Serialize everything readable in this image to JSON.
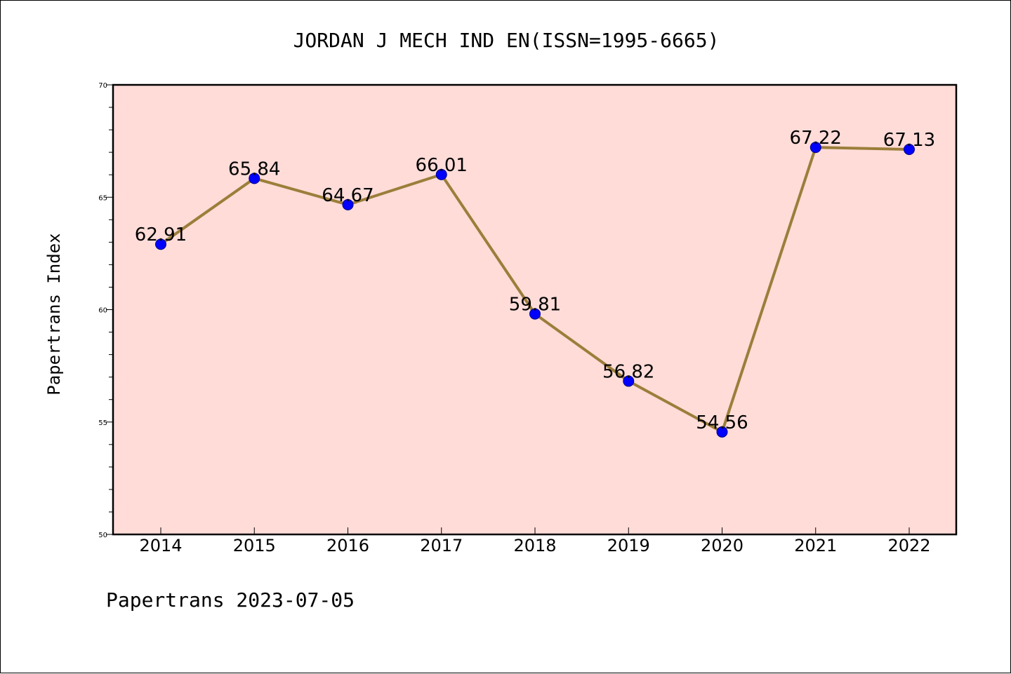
{
  "chart_data": {
    "type": "line",
    "title": "JORDAN J MECH IND EN(ISSN=1995-6665)",
    "xlabel": "",
    "ylabel": "Papertrans Index",
    "categories": [
      "2014",
      "2015",
      "2016",
      "2017",
      "2018",
      "2019",
      "2020",
      "2021",
      "2022"
    ],
    "series": [
      {
        "values": [
          62.91,
          65.84,
          64.67,
          66.01,
          59.81,
          56.82,
          54.56,
          67.22,
          67.13
        ]
      }
    ],
    "data_labels": [
      "62.91",
      "65.84",
      "64.67",
      "66.01",
      "59.81",
      "56.82",
      "54.56",
      "67.22",
      "67.13"
    ],
    "ylim": [
      50,
      70
    ],
    "y_ticks": [
      "50",
      "55",
      "60",
      "65",
      "70"
    ],
    "y_minor_step": 1,
    "grid": false,
    "legend": "none",
    "footer": "Papertrans 2023-07-05",
    "colors": {
      "plot_background": "#ffdcd8",
      "line": "#9b7e3a",
      "marker_fill": "#0000ff",
      "marker_edge": "#00008b",
      "text": "#000000"
    }
  }
}
